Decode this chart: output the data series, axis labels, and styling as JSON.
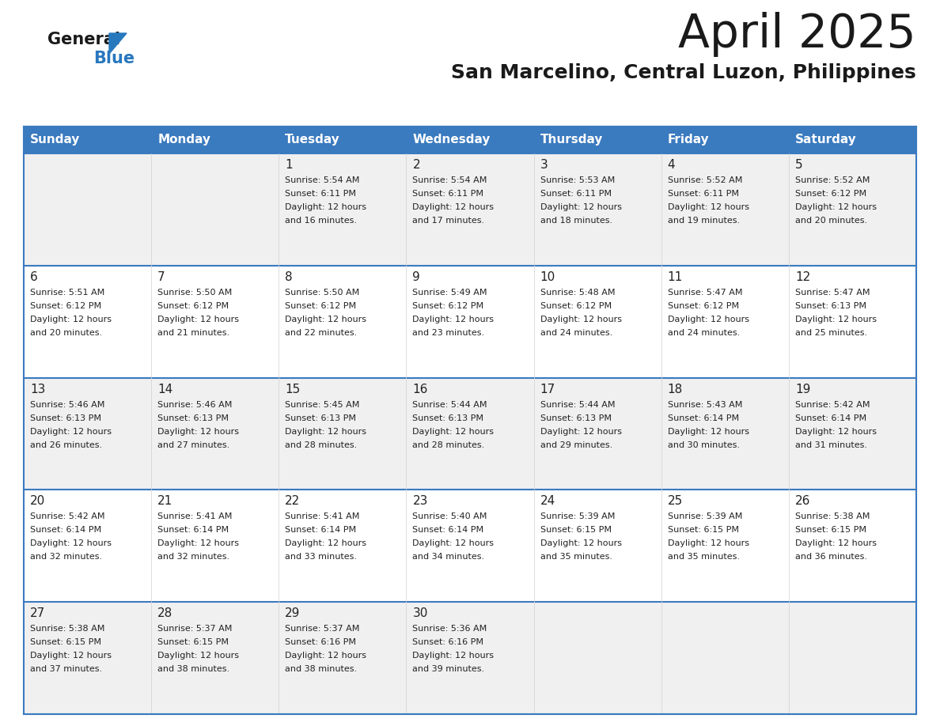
{
  "title": "April 2025",
  "subtitle": "San Marcelino, Central Luzon, Philippines",
  "days_of_week": [
    "Sunday",
    "Monday",
    "Tuesday",
    "Wednesday",
    "Thursday",
    "Friday",
    "Saturday"
  ],
  "header_bg": "#3a7abf",
  "header_text": "#ffffff",
  "row_bg_light": "#f0f0f0",
  "row_bg_white": "#ffffff",
  "text_color": "#222222",
  "title_color": "#1a1a1a",
  "subtitle_color": "#1a1a1a",
  "logo_general_color": "#1a1a1a",
  "logo_blue_color": "#2878be",
  "border_color": "#3a7abf",
  "calendar_data": [
    {
      "day": 1,
      "col": 2,
      "row": 0,
      "sunrise": "5:54 AM",
      "sunset": "6:11 PM",
      "daylight_min": "16"
    },
    {
      "day": 2,
      "col": 3,
      "row": 0,
      "sunrise": "5:54 AM",
      "sunset": "6:11 PM",
      "daylight_min": "17"
    },
    {
      "day": 3,
      "col": 4,
      "row": 0,
      "sunrise": "5:53 AM",
      "sunset": "6:11 PM",
      "daylight_min": "18"
    },
    {
      "day": 4,
      "col": 5,
      "row": 0,
      "sunrise": "5:52 AM",
      "sunset": "6:11 PM",
      "daylight_min": "19"
    },
    {
      "day": 5,
      "col": 6,
      "row": 0,
      "sunrise": "5:52 AM",
      "sunset": "6:12 PM",
      "daylight_min": "20"
    },
    {
      "day": 6,
      "col": 0,
      "row": 1,
      "sunrise": "5:51 AM",
      "sunset": "6:12 PM",
      "daylight_min": "20"
    },
    {
      "day": 7,
      "col": 1,
      "row": 1,
      "sunrise": "5:50 AM",
      "sunset": "6:12 PM",
      "daylight_min": "21"
    },
    {
      "day": 8,
      "col": 2,
      "row": 1,
      "sunrise": "5:50 AM",
      "sunset": "6:12 PM",
      "daylight_min": "22"
    },
    {
      "day": 9,
      "col": 3,
      "row": 1,
      "sunrise": "5:49 AM",
      "sunset": "6:12 PM",
      "daylight_min": "23"
    },
    {
      "day": 10,
      "col": 4,
      "row": 1,
      "sunrise": "5:48 AM",
      "sunset": "6:12 PM",
      "daylight_min": "24"
    },
    {
      "day": 11,
      "col": 5,
      "row": 1,
      "sunrise": "5:47 AM",
      "sunset": "6:12 PM",
      "daylight_min": "24"
    },
    {
      "day": 12,
      "col": 6,
      "row": 1,
      "sunrise": "5:47 AM",
      "sunset": "6:13 PM",
      "daylight_min": "25"
    },
    {
      "day": 13,
      "col": 0,
      "row": 2,
      "sunrise": "5:46 AM",
      "sunset": "6:13 PM",
      "daylight_min": "26"
    },
    {
      "day": 14,
      "col": 1,
      "row": 2,
      "sunrise": "5:46 AM",
      "sunset": "6:13 PM",
      "daylight_min": "27"
    },
    {
      "day": 15,
      "col": 2,
      "row": 2,
      "sunrise": "5:45 AM",
      "sunset": "6:13 PM",
      "daylight_min": "28"
    },
    {
      "day": 16,
      "col": 3,
      "row": 2,
      "sunrise": "5:44 AM",
      "sunset": "6:13 PM",
      "daylight_min": "28"
    },
    {
      "day": 17,
      "col": 4,
      "row": 2,
      "sunrise": "5:44 AM",
      "sunset": "6:13 PM",
      "daylight_min": "29"
    },
    {
      "day": 18,
      "col": 5,
      "row": 2,
      "sunrise": "5:43 AM",
      "sunset": "6:14 PM",
      "daylight_min": "30"
    },
    {
      "day": 19,
      "col": 6,
      "row": 2,
      "sunrise": "5:42 AM",
      "sunset": "6:14 PM",
      "daylight_min": "31"
    },
    {
      "day": 20,
      "col": 0,
      "row": 3,
      "sunrise": "5:42 AM",
      "sunset": "6:14 PM",
      "daylight_min": "32"
    },
    {
      "day": 21,
      "col": 1,
      "row": 3,
      "sunrise": "5:41 AM",
      "sunset": "6:14 PM",
      "daylight_min": "32"
    },
    {
      "day": 22,
      "col": 2,
      "row": 3,
      "sunrise": "5:41 AM",
      "sunset": "6:14 PM",
      "daylight_min": "33"
    },
    {
      "day": 23,
      "col": 3,
      "row": 3,
      "sunrise": "5:40 AM",
      "sunset": "6:14 PM",
      "daylight_min": "34"
    },
    {
      "day": 24,
      "col": 4,
      "row": 3,
      "sunrise": "5:39 AM",
      "sunset": "6:15 PM",
      "daylight_min": "35"
    },
    {
      "day": 25,
      "col": 5,
      "row": 3,
      "sunrise": "5:39 AM",
      "sunset": "6:15 PM",
      "daylight_min": "35"
    },
    {
      "day": 26,
      "col": 6,
      "row": 3,
      "sunrise": "5:38 AM",
      "sunset": "6:15 PM",
      "daylight_min": "36"
    },
    {
      "day": 27,
      "col": 0,
      "row": 4,
      "sunrise": "5:38 AM",
      "sunset": "6:15 PM",
      "daylight_min": "37"
    },
    {
      "day": 28,
      "col": 1,
      "row": 4,
      "sunrise": "5:37 AM",
      "sunset": "6:15 PM",
      "daylight_min": "38"
    },
    {
      "day": 29,
      "col": 2,
      "row": 4,
      "sunrise": "5:37 AM",
      "sunset": "6:16 PM",
      "daylight_min": "38"
    },
    {
      "day": 30,
      "col": 3,
      "row": 4,
      "sunrise": "5:36 AM",
      "sunset": "6:16 PM",
      "daylight_min": "39"
    }
  ]
}
